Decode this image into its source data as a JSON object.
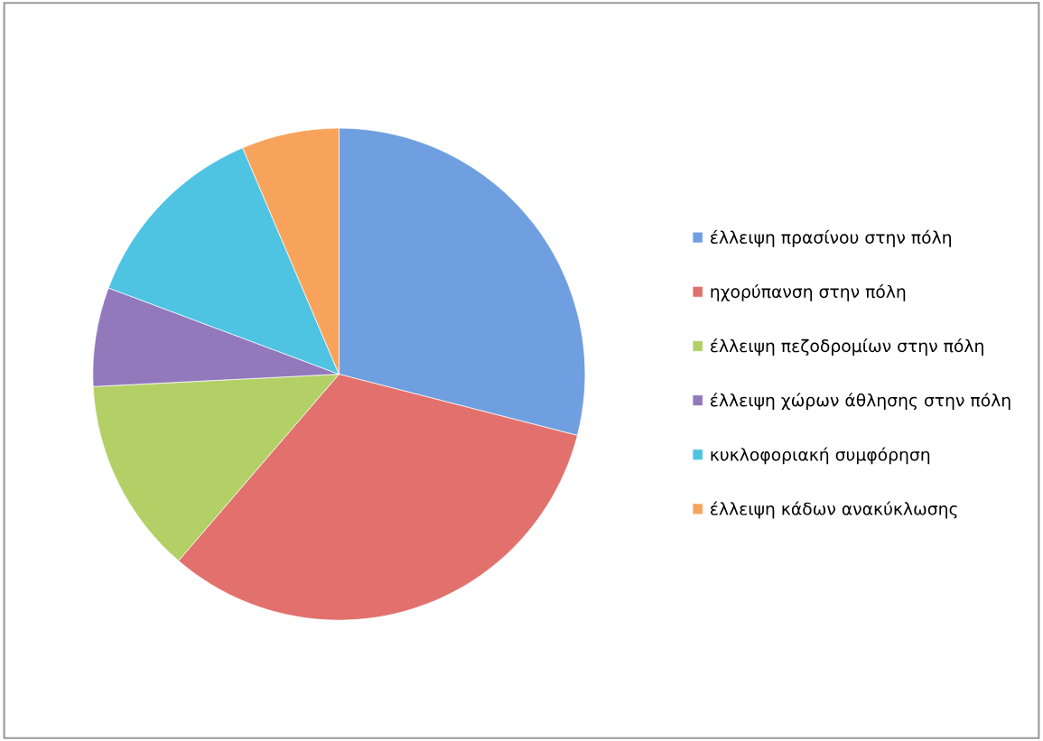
{
  "chart_data": {
    "type": "pie",
    "categories": [
      "έλλειψη πρασίνου στην πόλη",
      "ηχορύπανση στην πόλη",
      "έλλειψη πεζοδρομίων στην πόλη",
      "έλλειψη χώρων άθλησης στην πόλη",
      "κυκλοφοριακή συμφόρηση",
      "έλλειψη κάδων ανακύκλωσης"
    ],
    "values": [
      29,
      32.3,
      12.9,
      6.5,
      12.9,
      6.4
    ],
    "colors": [
      "#6f9fe0",
      "#e2716d",
      "#b3d066",
      "#9279bb",
      "#4ec3e2",
      "#f8a35b"
    ],
    "legend": "right"
  }
}
